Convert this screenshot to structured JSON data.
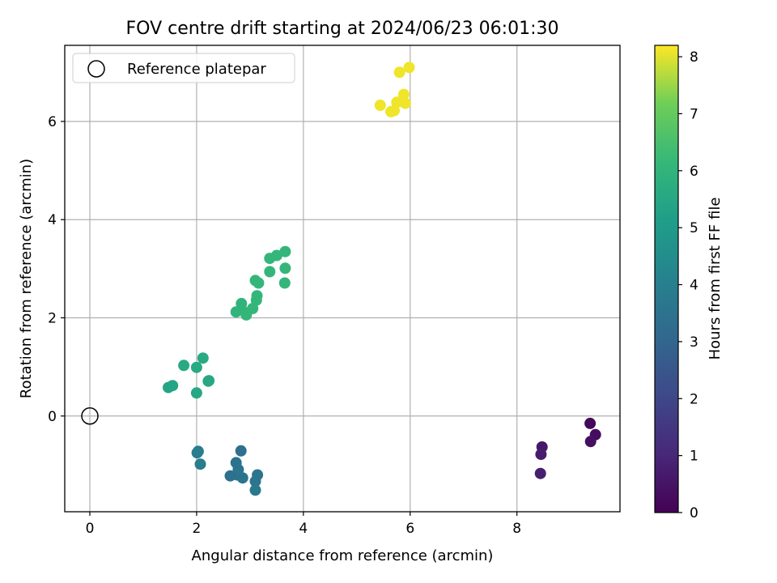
{
  "chart_data": {
    "type": "scatter",
    "title": "FOV centre drift starting at 2024/06/23 06:01:30",
    "xlabel": "Angular distance from reference (arcmin)",
    "ylabel": "Rotation from reference (arcmin)",
    "xlim": [
      -0.47,
      9.93
    ],
    "ylim": [
      -1.95,
      7.55
    ],
    "xticks": [
      0,
      2,
      4,
      6,
      8
    ],
    "yticks": [
      0,
      2,
      4,
      6
    ],
    "grid": true,
    "legend": {
      "placement": "upper-left",
      "entries": [
        "Reference platepar"
      ]
    },
    "reference": {
      "x": 0,
      "y": 0
    },
    "colorbar": {
      "label": "Hours from first FF file",
      "min": 0,
      "max": 8.2,
      "ticks": [
        0,
        1,
        2,
        3,
        4,
        5,
        6,
        7,
        8
      ],
      "colormap": "viridis"
    },
    "points": [
      {
        "x": 9.37,
        "y": -0.15,
        "t": 0.2
      },
      {
        "x": 9.47,
        "y": -0.38,
        "t": 0.3
      },
      {
        "x": 9.38,
        "y": -0.52,
        "t": 0.4
      },
      {
        "x": 8.47,
        "y": -0.63,
        "t": 0.6
      },
      {
        "x": 8.45,
        "y": -0.78,
        "t": 0.7
      },
      {
        "x": 8.44,
        "y": -1.17,
        "t": 0.8
      },
      {
        "x": 2.83,
        "y": -0.71,
        "t": 3.4
      },
      {
        "x": 2.74,
        "y": -0.95,
        "t": 3.5
      },
      {
        "x": 2.78,
        "y": -1.09,
        "t": 3.5
      },
      {
        "x": 2.76,
        "y": -1.2,
        "t": 3.6
      },
      {
        "x": 2.63,
        "y": -1.22,
        "t": 3.4
      },
      {
        "x": 2.86,
        "y": -1.26,
        "t": 3.5
      },
      {
        "x": 3.14,
        "y": -1.2,
        "t": 3.6
      },
      {
        "x": 3.1,
        "y": -1.33,
        "t": 3.6
      },
      {
        "x": 3.1,
        "y": -1.51,
        "t": 3.7
      },
      {
        "x": 2.03,
        "y": -0.72,
        "t": 3.9
      },
      {
        "x": 2.01,
        "y": -0.75,
        "t": 3.9
      },
      {
        "x": 2.07,
        "y": -0.98,
        "t": 3.9
      },
      {
        "x": 1.47,
        "y": 0.58,
        "t": 5.4
      },
      {
        "x": 1.55,
        "y": 0.62,
        "t": 5.4
      },
      {
        "x": 1.76,
        "y": 1.03,
        "t": 5.6
      },
      {
        "x": 2.12,
        "y": 1.18,
        "t": 5.6
      },
      {
        "x": 2.0,
        "y": 0.99,
        "t": 5.6
      },
      {
        "x": 2.23,
        "y": 0.72,
        "t": 5.6
      },
      {
        "x": 2.22,
        "y": 0.71,
        "t": 5.5
      },
      {
        "x": 2.0,
        "y": 0.47,
        "t": 5.5
      },
      {
        "x": 2.74,
        "y": 2.12,
        "t": 6.0
      },
      {
        "x": 2.84,
        "y": 2.29,
        "t": 6.0
      },
      {
        "x": 2.85,
        "y": 2.16,
        "t": 6.0
      },
      {
        "x": 2.93,
        "y": 2.06,
        "t": 6.1
      },
      {
        "x": 3.05,
        "y": 2.19,
        "t": 6.1
      },
      {
        "x": 3.12,
        "y": 2.36,
        "t": 6.1
      },
      {
        "x": 3.13,
        "y": 2.45,
        "t": 6.1
      },
      {
        "x": 3.1,
        "y": 2.76,
        "t": 6.1
      },
      {
        "x": 3.16,
        "y": 2.71,
        "t": 6.1
      },
      {
        "x": 3.37,
        "y": 3.21,
        "t": 6.1
      },
      {
        "x": 3.5,
        "y": 3.27,
        "t": 6.1
      },
      {
        "x": 3.66,
        "y": 3.35,
        "t": 6.1
      },
      {
        "x": 3.37,
        "y": 2.94,
        "t": 6.1
      },
      {
        "x": 3.66,
        "y": 3.01,
        "t": 6.1
      },
      {
        "x": 3.65,
        "y": 2.71,
        "t": 6.1
      },
      {
        "x": 5.8,
        "y": 7.0,
        "t": 8.1
      },
      {
        "x": 5.98,
        "y": 7.1,
        "t": 8.1
      },
      {
        "x": 5.44,
        "y": 6.33,
        "t": 8.1
      },
      {
        "x": 5.64,
        "y": 6.2,
        "t": 8.1
      },
      {
        "x": 5.7,
        "y": 6.22,
        "t": 8.1
      },
      {
        "x": 5.75,
        "y": 6.39,
        "t": 8.1
      },
      {
        "x": 5.88,
        "y": 6.55,
        "t": 8.1
      },
      {
        "x": 5.91,
        "y": 6.37,
        "t": 8.1
      }
    ]
  }
}
